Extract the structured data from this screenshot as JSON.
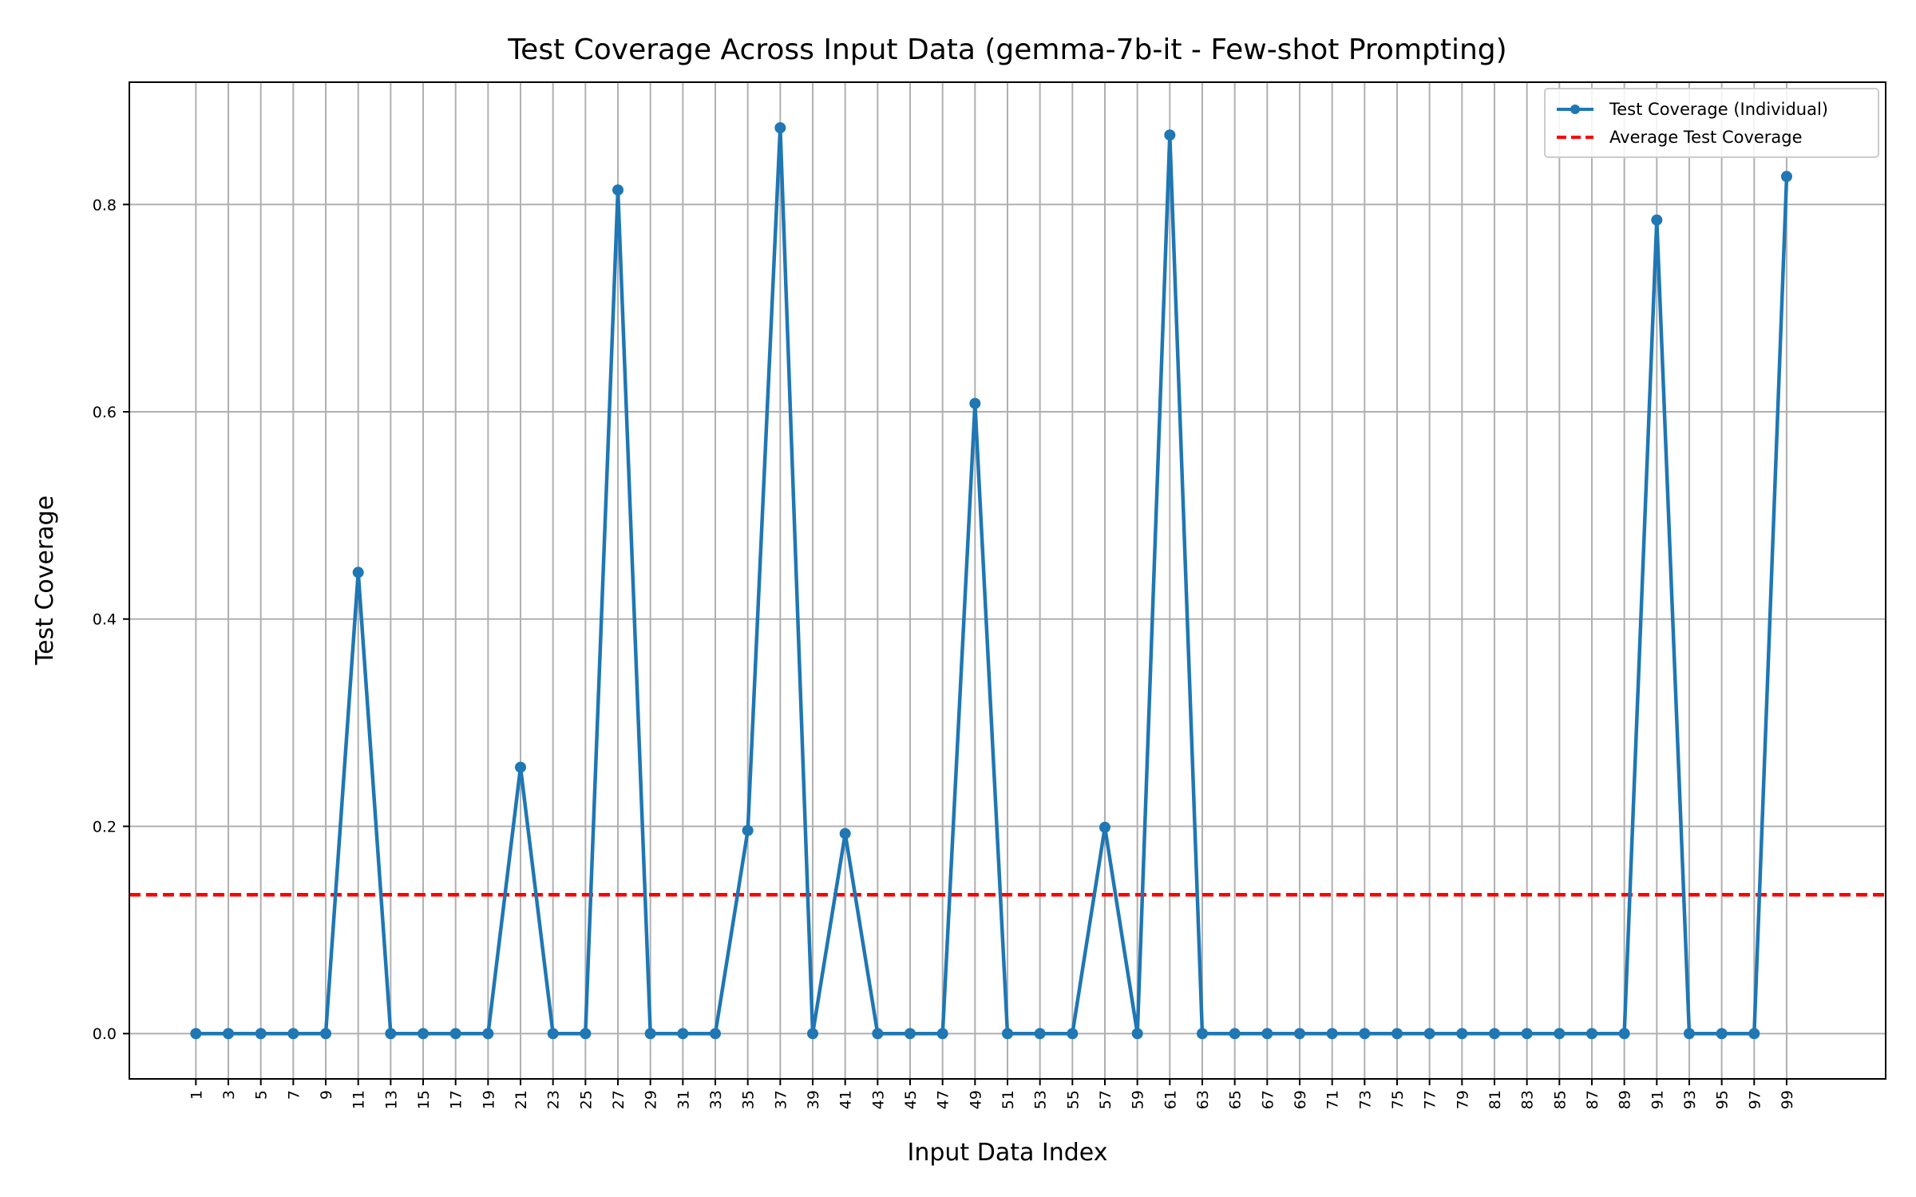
{
  "chart_data": {
    "type": "line",
    "title": "Test Coverage Across Input Data (gemma-7b-it - Few-shot Prompting)",
    "xlabel": "Input Data Index",
    "ylabel": "Test Coverage",
    "xlim": [
      -3.1,
      105.1
    ],
    "ylim": [
      -0.0437,
      0.918
    ],
    "xticks": [
      1,
      3,
      5,
      7,
      9,
      11,
      13,
      15,
      17,
      19,
      21,
      23,
      25,
      27,
      29,
      31,
      33,
      35,
      37,
      39,
      41,
      43,
      45,
      47,
      49,
      51,
      53,
      55,
      57,
      59,
      61,
      63,
      65,
      67,
      69,
      71,
      73,
      75,
      77,
      79,
      81,
      83,
      85,
      87,
      89,
      91,
      93,
      95,
      97,
      99
    ],
    "xtick_labels": [
      "1",
      "3",
      "5",
      "7",
      "9",
      "11",
      "13",
      "15",
      "17",
      "19",
      "21",
      "23",
      "25",
      "27",
      "29",
      "31",
      "33",
      "35",
      "37",
      "39",
      "41",
      "43",
      "45",
      "47",
      "49",
      "51",
      "53",
      "55",
      "57",
      "59",
      "61",
      "63",
      "65",
      "67",
      "69",
      "71",
      "73",
      "75",
      "77",
      "79",
      "81",
      "83",
      "85",
      "87",
      "89",
      "91",
      "93",
      "95",
      "97",
      "99"
    ],
    "yticks": [
      0.0,
      0.2,
      0.4,
      0.6,
      0.8
    ],
    "ytick_labels": [
      "0.0",
      "0.2",
      "0.4",
      "0.6",
      "0.8"
    ],
    "grid": true,
    "legend_position": "top-right",
    "series": [
      {
        "name": "Test Coverage (Individual)",
        "color": "#1f77b4",
        "style": "solid",
        "marker": "circle",
        "x": [
          1,
          3,
          5,
          7,
          9,
          11,
          13,
          15,
          17,
          19,
          21,
          23,
          25,
          27,
          29,
          31,
          33,
          35,
          37,
          39,
          41,
          43,
          45,
          47,
          49,
          51,
          53,
          55,
          57,
          59,
          61,
          63,
          65,
          67,
          69,
          71,
          73,
          75,
          77,
          79,
          81,
          83,
          85,
          87,
          89,
          91,
          93,
          95,
          97,
          99
        ],
        "y": [
          0,
          0,
          0,
          0,
          0,
          0.445,
          0,
          0,
          0,
          0,
          0.257,
          0,
          0,
          0.814,
          0,
          0,
          0,
          0.196,
          0.874,
          0,
          0.193,
          0,
          0,
          0,
          0.608,
          0,
          0,
          0,
          0.199,
          0,
          0.867,
          0,
          0,
          0,
          0,
          0,
          0,
          0,
          0,
          0,
          0,
          0,
          0,
          0,
          0,
          0.785,
          0,
          0,
          0,
          0.827
        ]
      },
      {
        "name": "Average Test Coverage",
        "color": "#ff0000",
        "style": "dashed",
        "type": "hline",
        "y": 0.134
      }
    ]
  }
}
